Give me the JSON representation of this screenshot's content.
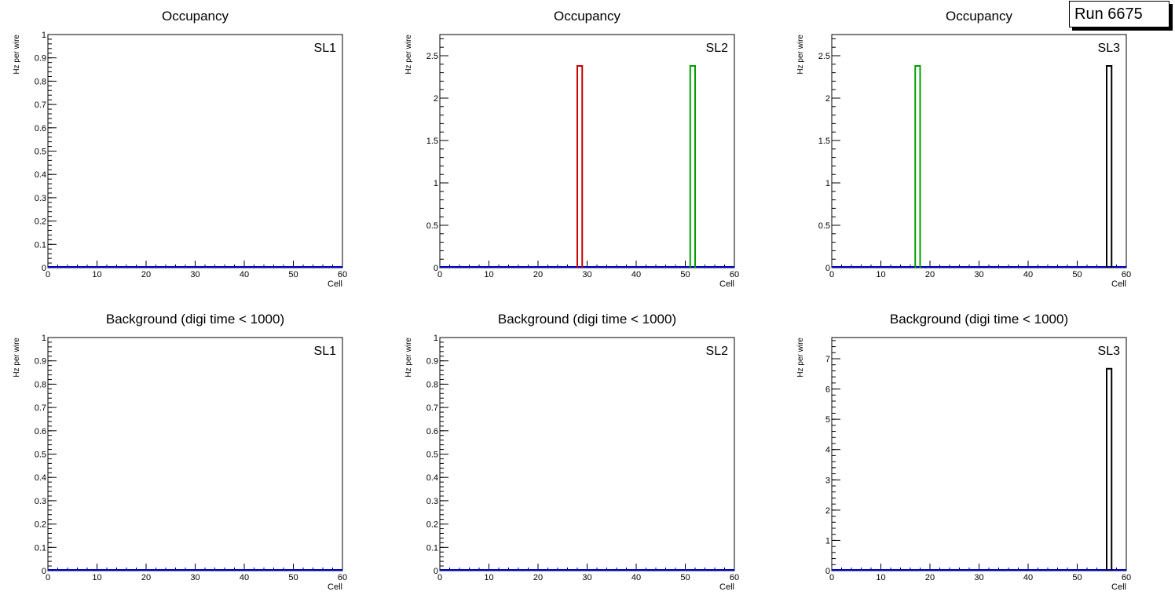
{
  "run_label": "Run 6675",
  "colors": {
    "red": "#cc0000",
    "green": "#00a000",
    "black": "#000000",
    "blue": "#0000cc"
  },
  "chart_data": [
    {
      "type": "bar",
      "title": "Occupancy",
      "label": "SL1",
      "xlabel": "Cell",
      "ylabel": "Hz per wire",
      "xlim": [
        0,
        60
      ],
      "ylim": [
        0,
        1
      ],
      "xticks": [
        0,
        10,
        20,
        30,
        40,
        50,
        60
      ],
      "yticks": [
        0,
        0.1,
        0.2,
        0.3,
        0.4,
        0.5,
        0.6,
        0.7,
        0.8,
        0.9,
        1
      ],
      "series": []
    },
    {
      "type": "bar",
      "title": "Occupancy",
      "label": "SL2",
      "xlabel": "Cell",
      "ylabel": "Hz per wire",
      "xlim": [
        0,
        60
      ],
      "ylim": [
        0,
        2.75
      ],
      "xticks": [
        0,
        10,
        20,
        30,
        40,
        50,
        60
      ],
      "yticks": [
        0,
        0.5,
        1,
        1.5,
        2,
        2.5
      ],
      "series": [
        {
          "color": "#cc0000",
          "bins": [
            [
              28,
              29,
              2.38
            ]
          ]
        },
        {
          "color": "#00a000",
          "bins": [
            [
              51,
              52,
              2.38
            ]
          ]
        }
      ]
    },
    {
      "type": "bar",
      "title": "Occupancy",
      "label": "SL3",
      "xlabel": "Cell",
      "ylabel": "Hz per wire",
      "xlim": [
        0,
        60
      ],
      "ylim": [
        0,
        2.75
      ],
      "xticks": [
        0,
        10,
        20,
        30,
        40,
        50,
        60
      ],
      "yticks": [
        0,
        0.5,
        1,
        1.5,
        2,
        2.5
      ],
      "series": [
        {
          "color": "#00a000",
          "bins": [
            [
              17,
              18,
              2.38
            ]
          ]
        },
        {
          "color": "#000000",
          "bins": [
            [
              56,
              57,
              2.38
            ]
          ]
        }
      ]
    },
    {
      "type": "bar",
      "title": "Background (digi time < 1000)",
      "label": "SL1",
      "xlabel": "Cell",
      "ylabel": "Hz per wire",
      "xlim": [
        0,
        60
      ],
      "ylim": [
        0,
        1
      ],
      "xticks": [
        0,
        10,
        20,
        30,
        40,
        50,
        60
      ],
      "yticks": [
        0,
        0.1,
        0.2,
        0.3,
        0.4,
        0.5,
        0.6,
        0.7,
        0.8,
        0.9,
        1
      ],
      "series": []
    },
    {
      "type": "bar",
      "title": "Background (digi time < 1000)",
      "label": "SL2",
      "xlabel": "Cell",
      "ylabel": "Hz per wire",
      "xlim": [
        0,
        60
      ],
      "ylim": [
        0,
        1
      ],
      "xticks": [
        0,
        10,
        20,
        30,
        40,
        50,
        60
      ],
      "yticks": [
        0,
        0.1,
        0.2,
        0.3,
        0.4,
        0.5,
        0.6,
        0.7,
        0.8,
        0.9,
        1
      ],
      "series": []
    },
    {
      "type": "bar",
      "title": "Background (digi time < 1000)",
      "label": "SL3",
      "xlabel": "Cell",
      "ylabel": "Hz per wire",
      "xlim": [
        0,
        60
      ],
      "ylim": [
        0,
        7.7
      ],
      "xticks": [
        0,
        10,
        20,
        30,
        40,
        50,
        60
      ],
      "yticks": [
        0,
        1,
        2,
        3,
        4,
        5,
        6,
        7
      ],
      "series": [
        {
          "color": "#000000",
          "bins": [
            [
              56,
              57,
              6.67
            ]
          ]
        }
      ]
    }
  ]
}
